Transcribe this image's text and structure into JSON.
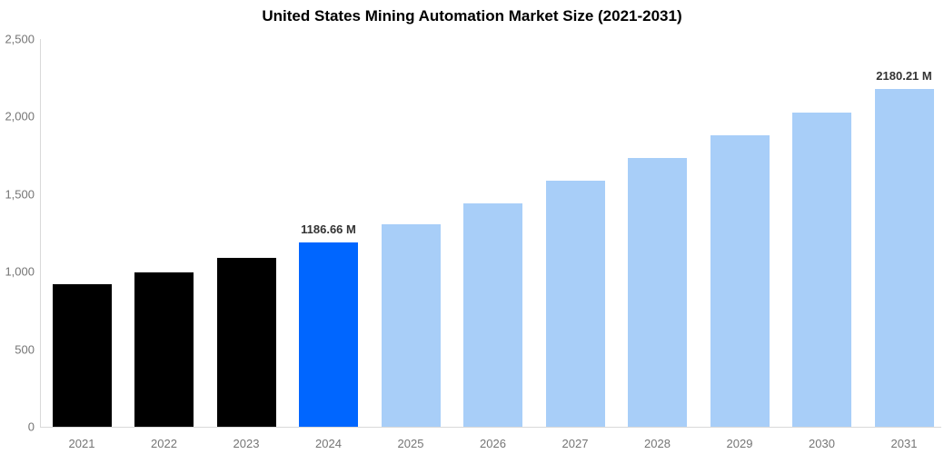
{
  "page": {
    "background_color": "#ffffff"
  },
  "chart_data": {
    "type": "bar",
    "title": "United States Mining Automation Market Size (2021-2031)",
    "value_unit": "M",
    "xlabel": "",
    "ylabel": "",
    "ylim": [
      0,
      2500
    ],
    "ytick_values": [
      0,
      500,
      1000,
      1500,
      2000,
      2500
    ],
    "ytick_labels": [
      "0",
      "500",
      "1,000",
      "1,500",
      "2,000",
      "2,500"
    ],
    "grid": false,
    "legend": false,
    "colors": {
      "historical_bar": "#000000",
      "highlight_bar": "#0066FF",
      "forecast_bar": "#A8CEF8",
      "axis_line": "#D9D9D9",
      "tick_text": "#757575",
      "data_label_text": "#333333",
      "title_text": "#000000"
    },
    "categories": [
      "2021",
      "2022",
      "2023",
      "2024",
      "2025",
      "2026",
      "2027",
      "2028",
      "2029",
      "2030",
      "2031"
    ],
    "values": [
      918,
      994,
      1087,
      1186.66,
      1304,
      1438,
      1585,
      1731,
      1882,
      2024,
      2180.21
    ],
    "bars": [
      {
        "year": "2021",
        "value": 918,
        "segment": "historical_bar",
        "label": ""
      },
      {
        "year": "2022",
        "value": 994,
        "segment": "historical_bar",
        "label": ""
      },
      {
        "year": "2023",
        "value": 1087,
        "segment": "historical_bar",
        "label": ""
      },
      {
        "year": "2024",
        "value": 1186.66,
        "segment": "highlight_bar",
        "label": "1186.66 M"
      },
      {
        "year": "2025",
        "value": 1304,
        "segment": "forecast_bar",
        "label": ""
      },
      {
        "year": "2026",
        "value": 1438,
        "segment": "forecast_bar",
        "label": ""
      },
      {
        "year": "2027",
        "value": 1585,
        "segment": "forecast_bar",
        "label": ""
      },
      {
        "year": "2028",
        "value": 1731,
        "segment": "forecast_bar",
        "label": ""
      },
      {
        "year": "2029",
        "value": 1882,
        "segment": "forecast_bar",
        "label": ""
      },
      {
        "year": "2030",
        "value": 2024,
        "segment": "forecast_bar",
        "label": ""
      },
      {
        "year": "2031",
        "value": 2180.21,
        "segment": "forecast_bar",
        "label": "2180.21 M"
      }
    ]
  }
}
